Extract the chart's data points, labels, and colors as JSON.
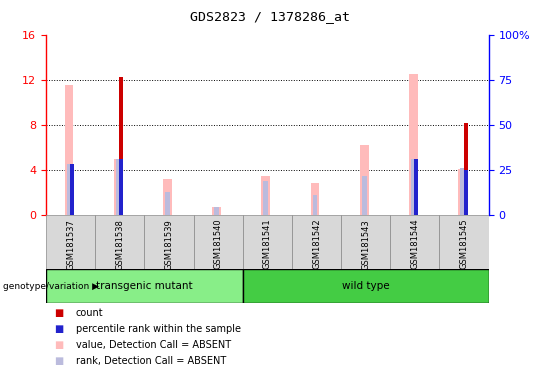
{
  "title": "GDS2823 / 1378286_at",
  "samples": [
    "GSM181537",
    "GSM181538",
    "GSM181539",
    "GSM181540",
    "GSM181541",
    "GSM181542",
    "GSM181543",
    "GSM181544",
    "GSM181545"
  ],
  "count": [
    0,
    12.2,
    0,
    0,
    0,
    0,
    0,
    0,
    8.2
  ],
  "percentile_rank": [
    4.5,
    5.0,
    0,
    0,
    0,
    0,
    0,
    5.0,
    4.0
  ],
  "value_absent": [
    11.5,
    5.0,
    3.2,
    0.7,
    3.5,
    2.8,
    6.2,
    12.5,
    4.1
  ],
  "rank_absent": [
    4.5,
    5.0,
    2.0,
    0.7,
    3.0,
    1.8,
    3.5,
    5.0,
    4.2
  ],
  "count_color": "#cc0000",
  "percentile_color": "#2222cc",
  "value_absent_color": "#ffbbbb",
  "rank_absent_color": "#bbbbdd",
  "transgenic_color": "#88ee88",
  "wildtype_color": "#44cc44",
  "ylim_left": [
    0,
    16
  ],
  "ylim_right": [
    0,
    100
  ],
  "yticks_left": [
    0,
    4,
    8,
    12,
    16
  ],
  "yticks_right": [
    0,
    25,
    50,
    75,
    100
  ],
  "yticklabels_right": [
    "0",
    "25",
    "50",
    "75",
    "100%"
  ],
  "legend_items": [
    {
      "label": "count",
      "color": "#cc0000"
    },
    {
      "label": "percentile rank within the sample",
      "color": "#2222cc"
    },
    {
      "label": "value, Detection Call = ABSENT",
      "color": "#ffbbbb"
    },
    {
      "label": "rank, Detection Call = ABSENT",
      "color": "#bbbbdd"
    }
  ]
}
